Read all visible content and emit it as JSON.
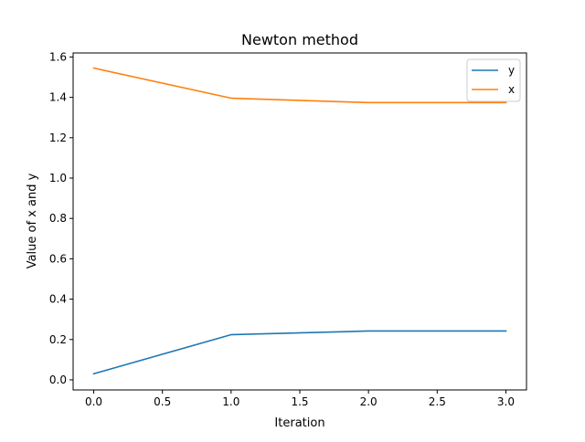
{
  "chart_data": {
    "type": "line",
    "title": "Newton method",
    "xlabel": "Iteration",
    "ylabel": "Value of x and y",
    "xlim": [
      -0.15,
      3.15
    ],
    "ylim": [
      -0.05,
      1.62
    ],
    "xticks": [
      0.0,
      0.5,
      1.0,
      1.5,
      2.0,
      2.5,
      3.0
    ],
    "xtick_labels": [
      "0.0",
      "0.5",
      "1.0",
      "1.5",
      "2.0",
      "2.5",
      "3.0"
    ],
    "yticks": [
      0.0,
      0.2,
      0.4,
      0.6,
      0.8,
      1.0,
      1.2,
      1.4,
      1.6
    ],
    "ytick_labels": [
      "0.0",
      "0.2",
      "0.4",
      "0.6",
      "0.8",
      "1.0",
      "1.2",
      "1.4",
      "1.6"
    ],
    "grid": false,
    "legend_position": "top-right",
    "x": [
      0,
      1,
      2,
      3
    ],
    "series": [
      {
        "name": "y",
        "color": "#1f77b4",
        "values": [
          0.03,
          0.224,
          0.242,
          0.242
        ]
      },
      {
        "name": "x",
        "color": "#ff7f0e",
        "values": [
          1.545,
          1.396,
          1.374,
          1.374
        ]
      }
    ]
  }
}
